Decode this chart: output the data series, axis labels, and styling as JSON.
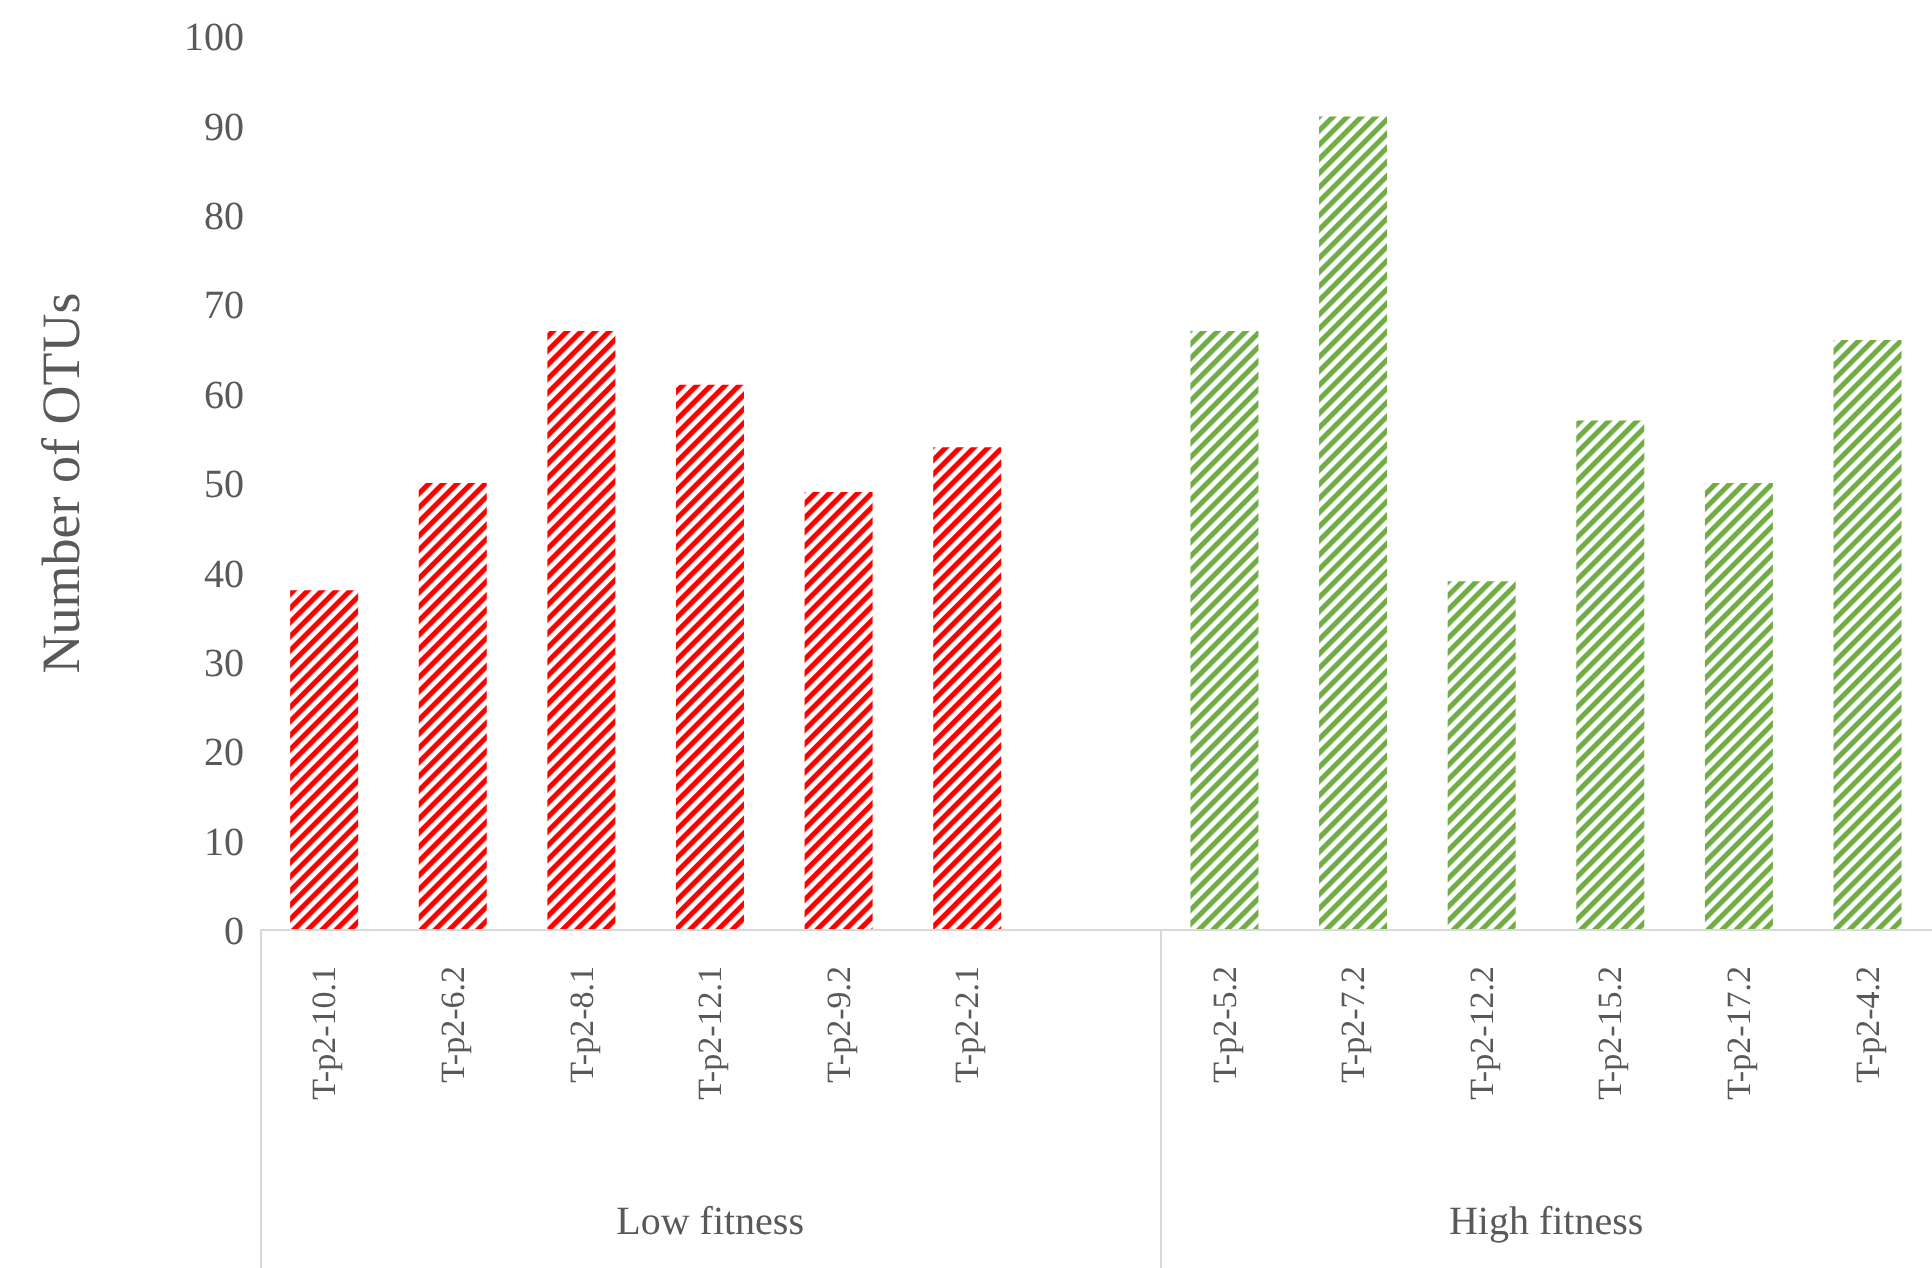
{
  "chart_data": {
    "type": "bar",
    "ylabel": "Number of OTUs",
    "categories": [
      "T-p2-10.1",
      "T-p2-6.2",
      "T-p2-8.1",
      "T-p2-12.1",
      "T-p2-9.2",
      "T-p2-2.1",
      null,
      "T-p2-5.2",
      "T-p2-7.2",
      "T-p2-12.2",
      "T-p2-15.2",
      "T-p2-17.2",
      "T-p2-4.2"
    ],
    "values": [
      38,
      50,
      67,
      61,
      49,
      54,
      null,
      67,
      91,
      39,
      57,
      50,
      66
    ],
    "colors": [
      "#ff0000",
      "#ff0000",
      "#ff0000",
      "#ff0000",
      "#ff0000",
      "#ff0000",
      "#ff0000",
      "#70ad47",
      "#70ad47",
      "#70ad47",
      "#70ad47",
      "#70ad47",
      "#70ad47"
    ],
    "ylim": [
      0,
      100
    ],
    "yticks": [
      0,
      10,
      20,
      30,
      40,
      50,
      60,
      70,
      80,
      90,
      100
    ],
    "annotations": [
      "Low fitness",
      "High fitness"
    ]
  }
}
